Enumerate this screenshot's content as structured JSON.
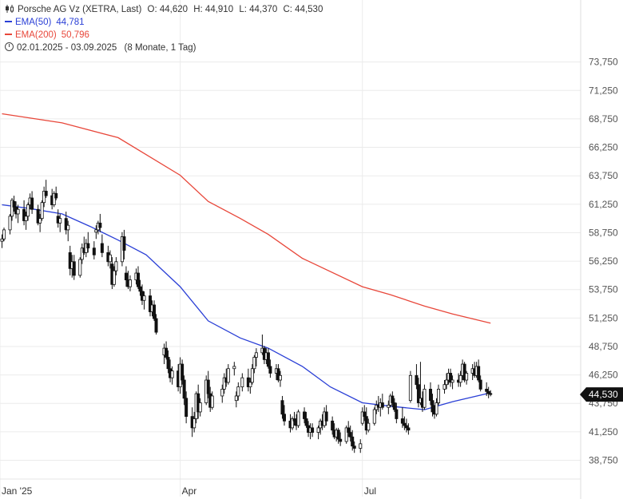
{
  "legend": {
    "instrument": "Porsche AG Vz (XETRA, Last)",
    "open": "O: 44,620",
    "high": "H: 44,910",
    "low": "L: 44,370",
    "close": "C: 44,530",
    "ema50_label": "EMA(50)",
    "ema50_value": "44,781",
    "ema200_label": "EMA(200)",
    "ema200_value": "50,796",
    "range": "02.01.2025 - 03.09.2025",
    "period": "(8 Monate, 1 Tag)"
  },
  "colors": {
    "ema50": "#2a3fd6",
    "ema200": "#e8473a",
    "candle": "#111111",
    "price_tag": "#111111"
  },
  "chart_data": {
    "type": "candlestick",
    "title": "Porsche AG Vz (XETRA, Last)",
    "y_ticks": [
      "38,750",
      "41,250",
      "43,750",
      "46,250",
      "48,750",
      "51,250",
      "53,750",
      "56,250",
      "58,750",
      "61,250",
      "63,750",
      "66,250",
      "68,750",
      "71,250",
      "73,750"
    ],
    "y_tick_values": [
      38.75,
      41.25,
      43.75,
      46.25,
      48.75,
      51.25,
      53.75,
      56.25,
      58.75,
      61.25,
      63.75,
      66.25,
      68.75,
      71.25,
      73.75
    ],
    "ylim": [
      37.1,
      79.2
    ],
    "x_ticks": [
      {
        "label": "Jan '25",
        "date": "2025-01-01"
      },
      {
        "label": "Apr",
        "date": "2025-04-01"
      },
      {
        "label": "Jul",
        "date": "2025-07-01"
      }
    ],
    "xlim": [
      "2025-01-01",
      "2025-10-18"
    ],
    "last_price_label": "44,530",
    "last_price": 44.53,
    "ema50": [
      [
        "2025-01-02",
        61.2
      ],
      [
        "2025-01-15",
        60.9
      ],
      [
        "2025-02-01",
        60.4
      ],
      [
        "2025-02-15",
        59.3
      ],
      [
        "2025-03-01",
        58.1
      ],
      [
        "2025-03-15",
        56.8
      ],
      [
        "2025-04-01",
        54.0
      ],
      [
        "2025-04-15",
        51.0
      ],
      [
        "2025-05-01",
        49.5
      ],
      [
        "2025-05-15",
        48.6
      ],
      [
        "2025-06-01",
        47.0
      ],
      [
        "2025-06-15",
        45.2
      ],
      [
        "2025-07-01",
        43.8
      ],
      [
        "2025-07-15",
        43.5
      ],
      [
        "2025-08-01",
        43.2
      ],
      [
        "2025-08-15",
        43.9
      ],
      [
        "2025-09-01",
        44.6
      ],
      [
        "2025-09-03",
        44.78
      ]
    ],
    "ema200": [
      [
        "2025-01-02",
        69.2
      ],
      [
        "2025-02-01",
        68.4
      ],
      [
        "2025-03-01",
        67.1
      ],
      [
        "2025-04-01",
        63.8
      ],
      [
        "2025-04-15",
        61.5
      ],
      [
        "2025-05-01",
        60.0
      ],
      [
        "2025-05-15",
        58.6
      ],
      [
        "2025-06-01",
        56.5
      ],
      [
        "2025-07-01",
        54.0
      ],
      [
        "2025-07-15",
        53.3
      ],
      [
        "2025-08-01",
        52.3
      ],
      [
        "2025-08-15",
        51.6
      ],
      [
        "2025-09-03",
        50.8
      ]
    ],
    "ohlc": [
      [
        "2025-01-02",
        58.0,
        58.6,
        57.4,
        58.2
      ],
      [
        "2025-01-03",
        58.2,
        59.2,
        58.0,
        59.0
      ],
      [
        "2025-01-06",
        59.0,
        60.4,
        58.6,
        60.2
      ],
      [
        "2025-01-07",
        60.2,
        61.8,
        59.8,
        61.6
      ],
      [
        "2025-01-08",
        61.5,
        62.0,
        60.6,
        61.0
      ],
      [
        "2025-01-09",
        61.0,
        61.5,
        60.0,
        60.4
      ],
      [
        "2025-01-10",
        60.4,
        61.2,
        59.6,
        60.8
      ],
      [
        "2025-01-13",
        60.8,
        61.6,
        59.4,
        59.8
      ],
      [
        "2025-01-14",
        59.8,
        60.6,
        59.0,
        60.2
      ],
      [
        "2025-01-15",
        60.2,
        61.4,
        59.8,
        61.2
      ],
      [
        "2025-01-16",
        61.2,
        62.2,
        60.8,
        61.8
      ],
      [
        "2025-01-17",
        61.8,
        62.4,
        60.4,
        60.8
      ],
      [
        "2025-01-20",
        60.8,
        61.2,
        59.4,
        59.6
      ],
      [
        "2025-01-21",
        59.6,
        60.4,
        58.8,
        60.0
      ],
      [
        "2025-01-22",
        60.0,
        61.6,
        59.8,
        61.4
      ],
      [
        "2025-01-23",
        61.4,
        62.8,
        61.0,
        62.4
      ],
      [
        "2025-01-24",
        62.4,
        63.4,
        61.8,
        62.0
      ],
      [
        "2025-01-27",
        62.0,
        62.6,
        60.8,
        61.2
      ],
      [
        "2025-01-28",
        61.2,
        62.4,
        61.0,
        62.2
      ],
      [
        "2025-01-29",
        62.2,
        62.8,
        61.6,
        61.8
      ],
      [
        "2025-01-30",
        60.2,
        60.8,
        59.2,
        59.6
      ],
      [
        "2025-01-31",
        59.6,
        60.4,
        58.8,
        60.0
      ],
      [
        "2025-02-03",
        60.0,
        60.6,
        58.6,
        59.0
      ],
      [
        "2025-02-04",
        59.0,
        59.8,
        58.0,
        59.4
      ],
      [
        "2025-02-05",
        57.0,
        57.6,
        55.0,
        55.6
      ],
      [
        "2025-02-06",
        55.6,
        56.8,
        54.8,
        56.2
      ],
      [
        "2025-02-07",
        56.2,
        56.8,
        54.6,
        55.0
      ],
      [
        "2025-02-10",
        55.0,
        56.6,
        54.8,
        56.4
      ],
      [
        "2025-02-11",
        56.4,
        57.8,
        56.0,
        57.4
      ],
      [
        "2025-02-12",
        57.4,
        58.4,
        56.8,
        57.0
      ],
      [
        "2025-02-13",
        57.0,
        58.2,
        56.6,
        57.8
      ],
      [
        "2025-02-14",
        57.8,
        58.8,
        57.0,
        57.4
      ],
      [
        "2025-02-17",
        57.4,
        58.0,
        56.4,
        56.8
      ],
      [
        "2025-02-18",
        58.8,
        59.4,
        58.2,
        59.0
      ],
      [
        "2025-02-19",
        59.0,
        59.8,
        58.6,
        59.6
      ],
      [
        "2025-02-20",
        59.6,
        60.4,
        58.8,
        59.2
      ],
      [
        "2025-02-21",
        57.8,
        58.6,
        56.6,
        57.0
      ],
      [
        "2025-02-24",
        57.0,
        57.6,
        55.8,
        56.2
      ],
      [
        "2025-02-25",
        56.2,
        57.2,
        55.6,
        56.8
      ],
      [
        "2025-02-26",
        56.0,
        56.6,
        53.8,
        54.2
      ],
      [
        "2025-02-27",
        54.2,
        55.8,
        54.0,
        55.4
      ],
      [
        "2025-02-28",
        55.4,
        56.6,
        55.0,
        56.2
      ],
      [
        "2025-03-03",
        56.2,
        58.8,
        55.8,
        58.4
      ],
      [
        "2025-03-04",
        58.4,
        59.0,
        56.4,
        57.2
      ],
      [
        "2025-03-05",
        55.2,
        55.8,
        54.0,
        54.6
      ],
      [
        "2025-03-06",
        54.6,
        55.4,
        53.8,
        54.0
      ],
      [
        "2025-03-07",
        54.0,
        55.0,
        53.6,
        54.6
      ],
      [
        "2025-03-10",
        54.6,
        55.6,
        54.2,
        55.2
      ],
      [
        "2025-03-11",
        55.2,
        55.8,
        53.8,
        54.0
      ],
      [
        "2025-03-12",
        54.0,
        54.6,
        53.2,
        53.6
      ],
      [
        "2025-03-13",
        53.6,
        54.2,
        52.4,
        52.8
      ],
      [
        "2025-03-14",
        52.8,
        53.6,
        52.0,
        53.2
      ],
      [
        "2025-03-17",
        53.2,
        53.8,
        51.4,
        51.8
      ],
      [
        "2025-03-18",
        51.8,
        52.8,
        51.4,
        52.4
      ],
      [
        "2025-03-19",
        52.4,
        52.8,
        51.0,
        51.2
      ],
      [
        "2025-03-20",
        51.2,
        51.6,
        49.8,
        50.0
      ],
      [
        "2025-03-24",
        48.0,
        49.0,
        47.2,
        48.6
      ],
      [
        "2025-03-25",
        48.6,
        49.2,
        47.6,
        47.8
      ],
      [
        "2025-03-26",
        47.8,
        48.4,
        46.4,
        46.8
      ],
      [
        "2025-03-27",
        46.8,
        47.6,
        45.6,
        46.0
      ],
      [
        "2025-03-28",
        46.0,
        47.0,
        45.4,
        46.6
      ],
      [
        "2025-03-31",
        46.6,
        47.2,
        44.8,
        45.2
      ],
      [
        "2025-04-01",
        45.2,
        47.8,
        44.6,
        47.2
      ],
      [
        "2025-04-02",
        47.2,
        47.6,
        45.4,
        45.8
      ],
      [
        "2025-04-03",
        45.8,
        46.2,
        43.6,
        44.2
      ],
      [
        "2025-04-04",
        44.2,
        44.8,
        42.0,
        42.6
      ],
      [
        "2025-04-07",
        42.6,
        43.4,
        40.8,
        41.6
      ],
      [
        "2025-04-08",
        41.6,
        43.0,
        41.2,
        42.4
      ],
      [
        "2025-04-09",
        42.4,
        44.8,
        42.0,
        44.6
      ],
      [
        "2025-04-10",
        44.6,
        45.4,
        42.4,
        43.0
      ],
      [
        "2025-04-11",
        43.0,
        44.2,
        42.6,
        43.8
      ],
      [
        "2025-04-14",
        43.8,
        46.2,
        43.6,
        45.8
      ],
      [
        "2025-04-15",
        45.8,
        46.6,
        44.2,
        44.6
      ],
      [
        "2025-04-16",
        44.6,
        45.2,
        43.0,
        43.4
      ],
      [
        "2025-04-17",
        43.4,
        44.8,
        43.2,
        44.4
      ],
      [
        "2025-04-22",
        44.4,
        45.4,
        43.8,
        45.0
      ],
      [
        "2025-04-23",
        45.0,
        46.4,
        44.6,
        46.0
      ],
      [
        "2025-04-24",
        46.0,
        46.8,
        45.2,
        45.6
      ],
      [
        "2025-04-25",
        45.6,
        47.2,
        45.4,
        46.8
      ],
      [
        "2025-04-28",
        46.8,
        47.4,
        46.2,
        47.0
      ],
      [
        "2025-04-29",
        44.0,
        44.8,
        43.4,
        44.4
      ],
      [
        "2025-04-30",
        44.4,
        45.6,
        44.0,
        45.2
      ],
      [
        "2025-05-02",
        45.2,
        46.4,
        44.8,
        46.0
      ],
      [
        "2025-05-05",
        46.0,
        46.8,
        44.8,
        45.2
      ],
      [
        "2025-05-06",
        45.2,
        46.0,
        44.6,
        45.6
      ],
      [
        "2025-05-07",
        45.6,
        47.2,
        45.4,
        46.8
      ],
      [
        "2025-05-08",
        46.8,
        48.0,
        46.4,
        47.8
      ],
      [
        "2025-05-09",
        47.8,
        48.6,
        47.0,
        48.2
      ],
      [
        "2025-05-12",
        48.2,
        49.8,
        48.0,
        48.6
      ],
      [
        "2025-05-13",
        48.6,
        48.8,
        47.2,
        47.6
      ],
      [
        "2025-05-14",
        47.6,
        48.6,
        47.2,
        48.2
      ],
      [
        "2025-05-15",
        48.2,
        48.6,
        46.8,
        47.0
      ],
      [
        "2025-05-16",
        47.0,
        47.6,
        46.0,
        46.4
      ],
      [
        "2025-05-19",
        46.4,
        47.2,
        45.8,
        46.8
      ],
      [
        "2025-05-20",
        46.8,
        47.2,
        45.6,
        45.8
      ],
      [
        "2025-05-21",
        45.8,
        46.6,
        45.2,
        46.2
      ],
      [
        "2025-05-22",
        44.0,
        44.4,
        42.4,
        42.8
      ],
      [
        "2025-05-23",
        42.8,
        43.6,
        41.8,
        42.2
      ],
      [
        "2025-05-26",
        42.2,
        42.8,
        41.2,
        41.6
      ],
      [
        "2025-05-27",
        41.6,
        42.6,
        41.4,
        42.4
      ],
      [
        "2025-05-28",
        42.4,
        43.0,
        41.8,
        42.2
      ],
      [
        "2025-05-29",
        42.2,
        42.8,
        41.4,
        41.8
      ],
      [
        "2025-05-30",
        41.8,
        43.2,
        41.6,
        43.0
      ],
      [
        "2025-06-02",
        43.0,
        43.4,
        42.0,
        42.4
      ],
      [
        "2025-06-03",
        42.4,
        43.0,
        41.6,
        41.8
      ],
      [
        "2025-06-04",
        41.8,
        42.2,
        40.8,
        41.2
      ],
      [
        "2025-06-05",
        41.2,
        42.0,
        40.6,
        41.6
      ],
      [
        "2025-06-06",
        41.6,
        42.0,
        40.8,
        41.2
      ],
      [
        "2025-06-09",
        41.2,
        41.8,
        40.6,
        41.6
      ],
      [
        "2025-06-10",
        41.6,
        42.4,
        41.0,
        42.2
      ],
      [
        "2025-06-11",
        42.2,
        42.8,
        41.4,
        41.8
      ],
      [
        "2025-06-12",
        41.8,
        43.4,
        41.6,
        43.0
      ],
      [
        "2025-06-13",
        43.0,
        43.6,
        41.8,
        42.2
      ],
      [
        "2025-06-16",
        42.2,
        42.6,
        41.0,
        41.4
      ],
      [
        "2025-06-17",
        41.4,
        42.0,
        40.6,
        40.8
      ],
      [
        "2025-06-18",
        40.8,
        41.6,
        40.4,
        41.4
      ],
      [
        "2025-06-19",
        41.4,
        41.6,
        40.2,
        40.6
      ],
      [
        "2025-06-20",
        40.6,
        41.2,
        40.0,
        40.4
      ],
      [
        "2025-06-23",
        40.4,
        41.8,
        40.2,
        41.6
      ],
      [
        "2025-06-24",
        41.6,
        42.2,
        40.8,
        41.2
      ],
      [
        "2025-06-25",
        41.2,
        41.8,
        40.4,
        40.8
      ],
      [
        "2025-06-26",
        40.8,
        41.4,
        39.6,
        40.0
      ],
      [
        "2025-06-27",
        40.0,
        40.4,
        39.4,
        39.8
      ],
      [
        "2025-06-30",
        39.8,
        40.6,
        39.4,
        40.2
      ],
      [
        "2025-07-01",
        42.0,
        43.4,
        41.8,
        43.0
      ],
      [
        "2025-07-02",
        43.0,
        43.6,
        42.2,
        42.6
      ],
      [
        "2025-07-03",
        42.6,
        43.4,
        41.0,
        41.4
      ],
      [
        "2025-07-04",
        41.4,
        42.4,
        41.2,
        42.0
      ],
      [
        "2025-07-07",
        42.0,
        43.4,
        41.8,
        43.2
      ],
      [
        "2025-07-08",
        43.2,
        44.0,
        42.8,
        43.6
      ],
      [
        "2025-07-09",
        43.6,
        44.4,
        43.0,
        43.4
      ],
      [
        "2025-07-10",
        43.4,
        44.2,
        42.6,
        43.8
      ],
      [
        "2025-07-11",
        43.8,
        44.6,
        43.2,
        43.4
      ],
      [
        "2025-07-14",
        43.4,
        44.0,
        42.8,
        43.6
      ],
      [
        "2025-07-15",
        43.6,
        44.6,
        43.4,
        44.4
      ],
      [
        "2025-07-16",
        44.4,
        44.8,
        43.4,
        43.8
      ],
      [
        "2025-07-17",
        43.8,
        44.2,
        43.0,
        43.2
      ],
      [
        "2025-07-18",
        43.2,
        43.8,
        42.0,
        42.4
      ],
      [
        "2025-07-21",
        42.4,
        43.4,
        41.6,
        42.0
      ],
      [
        "2025-07-22",
        42.0,
        42.6,
        41.4,
        41.8
      ],
      [
        "2025-07-23",
        41.8,
        42.4,
        41.2,
        41.6
      ],
      [
        "2025-07-24",
        41.6,
        42.0,
        41.0,
        41.4
      ],
      [
        "2025-07-25",
        44.0,
        46.6,
        43.8,
        46.2
      ],
      [
        "2025-07-28",
        46.2,
        47.2,
        45.0,
        45.4
      ],
      [
        "2025-07-29",
        45.4,
        46.0,
        43.4,
        43.8
      ],
      [
        "2025-07-30",
        43.8,
        47.4,
        43.6,
        44.2
      ],
      [
        "2025-07-31",
        44.2,
        44.8,
        43.0,
        43.4
      ],
      [
        "2025-08-01",
        43.4,
        45.4,
        43.2,
        45.0
      ],
      [
        "2025-08-04",
        45.0,
        45.6,
        43.6,
        44.0
      ],
      [
        "2025-08-05",
        44.0,
        44.6,
        42.6,
        43.0
      ],
      [
        "2025-08-06",
        43.0,
        43.6,
        42.4,
        42.8
      ],
      [
        "2025-08-07",
        42.8,
        44.2,
        42.6,
        43.8
      ],
      [
        "2025-08-08",
        43.8,
        45.4,
        43.6,
        45.0
      ],
      [
        "2025-08-11",
        45.0,
        45.8,
        44.6,
        45.4
      ],
      [
        "2025-08-12",
        45.4,
        46.4,
        45.0,
        45.8
      ],
      [
        "2025-08-13",
        45.8,
        46.8,
        45.4,
        46.4
      ],
      [
        "2025-08-14",
        46.4,
        46.8,
        45.2,
        45.6
      ],
      [
        "2025-08-15",
        45.6,
        46.2,
        45.0,
        45.8
      ],
      [
        "2025-08-18",
        45.8,
        46.4,
        45.2,
        45.6
      ],
      [
        "2025-08-19",
        45.6,
        46.6,
        45.2,
        46.2
      ],
      [
        "2025-08-20",
        46.2,
        47.6,
        45.8,
        47.2
      ],
      [
        "2025-08-21",
        47.2,
        47.4,
        45.6,
        45.8
      ],
      [
        "2025-08-22",
        45.8,
        46.6,
        45.4,
        46.4
      ],
      [
        "2025-08-25",
        46.4,
        47.2,
        45.8,
        46.8
      ],
      [
        "2025-08-26",
        46.8,
        47.4,
        46.0,
        46.2
      ],
      [
        "2025-08-27",
        46.2,
        47.4,
        46.0,
        47.0
      ],
      [
        "2025-08-28",
        47.0,
        47.6,
        45.6,
        45.8
      ],
      [
        "2025-08-29",
        45.8,
        46.2,
        44.8,
        45.0
      ],
      [
        "2025-09-01",
        45.0,
        45.6,
        44.4,
        44.8
      ],
      [
        "2025-09-02",
        44.8,
        45.2,
        44.2,
        44.6
      ],
      [
        "2025-09-03",
        44.62,
        44.91,
        44.37,
        44.53
      ]
    ]
  }
}
